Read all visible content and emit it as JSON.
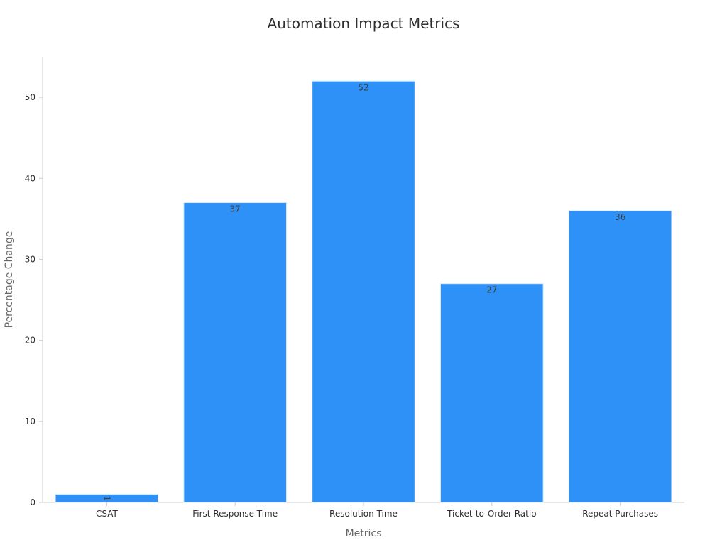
{
  "chart_data": {
    "type": "bar",
    "title": "Automation Impact Metrics",
    "xlabel": "Metrics",
    "ylabel": "Percentage Change",
    "categories": [
      "CSAT",
      "First Response Time",
      "Resolution Time",
      "Ticket-to-Order Ratio",
      "Repeat Purchases"
    ],
    "values": [
      1,
      37,
      52,
      27,
      36
    ],
    "data_labels": [
      "1",
      "37",
      "52",
      "27",
      "36"
    ],
    "ylim": [
      0,
      55
    ],
    "yticks": [
      0,
      10,
      20,
      30,
      40,
      50
    ],
    "ytick_labels": [
      "0",
      "10",
      "20",
      "30",
      "40",
      "50"
    ],
    "grid": false,
    "legend": "none",
    "colors": {
      "bar": "#2E91F8",
      "bar_edge": "#D8E8FB",
      "axis": "#CCCCCC",
      "text": "#2F2F2F",
      "axis_label": "#666666"
    }
  }
}
